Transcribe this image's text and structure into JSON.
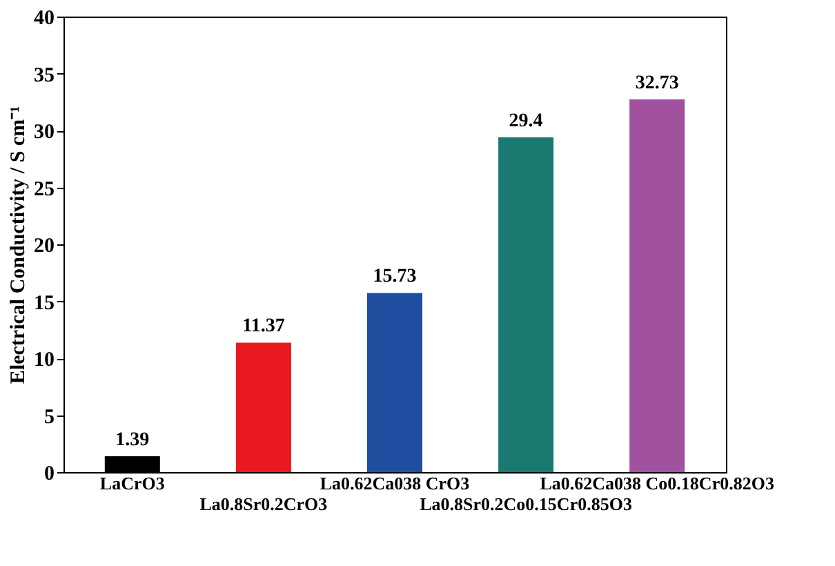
{
  "chart_data": {
    "type": "bar",
    "ylabel": "Electrical Conductivity / S cm⁻¹",
    "categories": [
      "LaCrO3",
      "La0.8Sr0.2CrO3",
      "La0.62Ca038 CrO3",
      "La0.8Sr0.2Co0.15Cr0.85O3",
      "La0.62Ca038 Co0.18Cr0.82O3"
    ],
    "values": [
      1.39,
      11.37,
      15.73,
      29.4,
      32.73
    ],
    "colors": [
      "#000000",
      "#e8191f",
      "#1f4ea0",
      "#1a7a72",
      "#a0529f"
    ],
    "ylim": [
      0,
      40
    ],
    "yticks": [
      0,
      5,
      10,
      15,
      20,
      25,
      30,
      35,
      40
    ],
    "data_labels": true,
    "grid": false,
    "legend": false
  }
}
